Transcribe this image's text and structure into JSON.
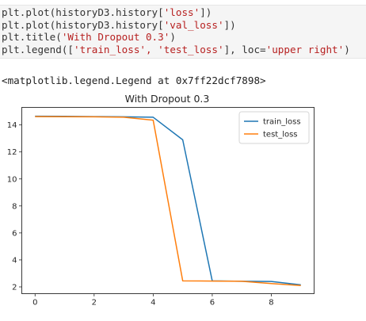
{
  "code_cell": {
    "lines": [
      {
        "pre": "plt.plot(historyD3.history[",
        "str": "'loss'",
        "post": "])"
      },
      {
        "pre": "plt.plot(historyD3.history[",
        "str": "'val_loss'",
        "post": "])"
      },
      {
        "pre": "plt.title(",
        "str": "'With Dropout 0.3'",
        "post": ")"
      },
      {
        "pre": "plt.legend([",
        "str": "'train_loss', 'test_loss'",
        "post": "], loc=",
        "str2": "'upper right'",
        "post2": ")"
      }
    ]
  },
  "output_text": "<matplotlib.legend.Legend at 0x7ff22dcf7898>",
  "chart_data": {
    "type": "line",
    "title": "With Dropout 0.3",
    "xlabel": "",
    "ylabel": "",
    "x": [
      0,
      1,
      2,
      3,
      4,
      5,
      6,
      7,
      8,
      9
    ],
    "series": [
      {
        "name": "train_loss",
        "color": "#1f77b4",
        "values": [
          14.65,
          14.64,
          14.62,
          14.6,
          14.57,
          12.9,
          2.45,
          2.42,
          2.4,
          2.15
        ]
      },
      {
        "name": "test_loss",
        "color": "#ff7f0e",
        "values": [
          14.62,
          14.61,
          14.6,
          14.57,
          14.35,
          2.45,
          2.43,
          2.42,
          2.25,
          2.1
        ]
      }
    ],
    "xlim": [
      -0.45,
      9.45
    ],
    "ylim": [
      1.5,
      15.3
    ],
    "xticks": [
      0,
      2,
      4,
      6,
      8
    ],
    "yticks": [
      2,
      4,
      6,
      8,
      10,
      12,
      14
    ],
    "grid": false,
    "legend_loc": "upper right"
  }
}
